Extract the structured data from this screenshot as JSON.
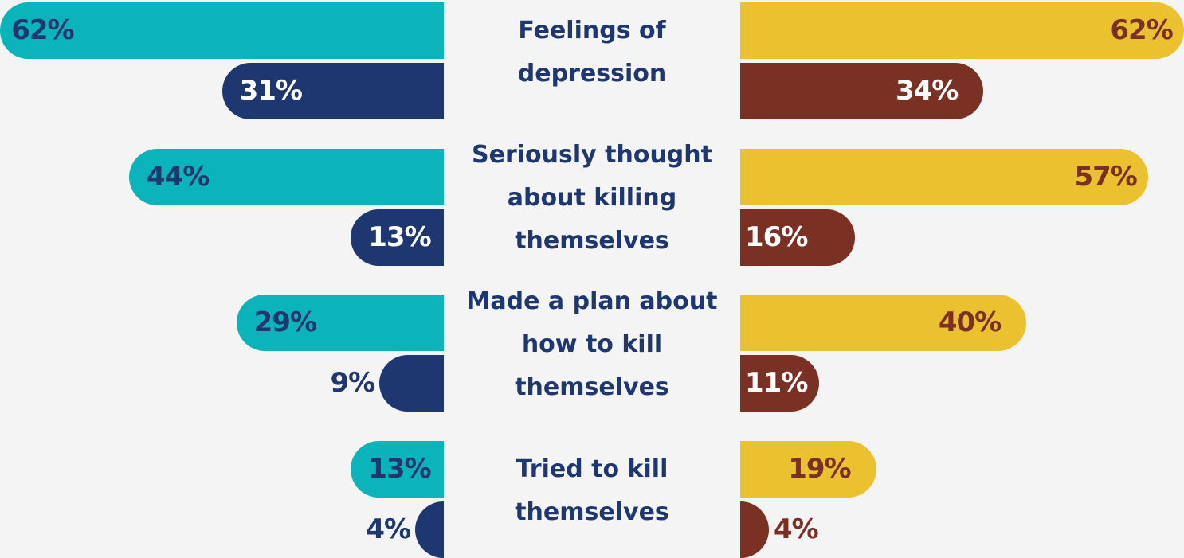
{
  "chart_data": {
    "type": "bar",
    "categories": [
      "Feelings of depression",
      "Seriously thought about killing themselves",
      "Made a plan about how to kill themselves",
      "Tried to kill themselves"
    ],
    "series": [
      {
        "color": "#0bb3bb",
        "values": [
          62,
          44,
          29,
          13
        ],
        "value_labels": [
          "62%",
          "44%",
          "29%",
          "13%"
        ]
      },
      {
        "color": "#1e3770",
        "values": [
          31,
          13,
          9,
          4
        ],
        "value_labels": [
          "31%",
          "13%",
          "9%",
          "4%"
        ]
      },
      {
        "color": "#ebc12f",
        "values": [
          62,
          57,
          40,
          19
        ],
        "value_labels": [
          "62%",
          "57%",
          "40%",
          "19%"
        ]
      },
      {
        "color": "#7a3022",
        "values": [
          34,
          16,
          11,
          4
        ],
        "value_labels": [
          "34%",
          "16%",
          "11%",
          "4%"
        ]
      }
    ]
  }
}
